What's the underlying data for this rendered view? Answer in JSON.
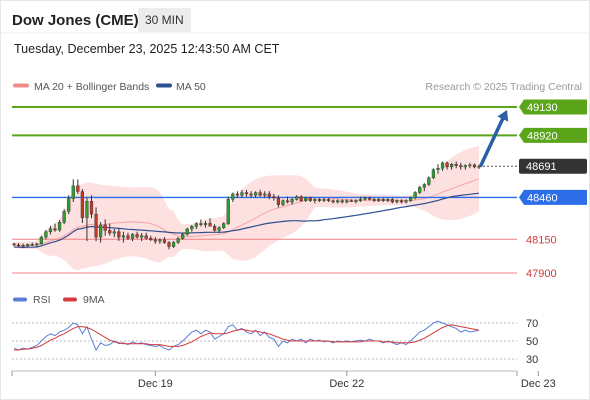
{
  "header": {
    "title": "Dow Jones (CME)",
    "timeframe": "30 MIN",
    "datetime": "Tuesday, December 23, 2025 12:43:50 AM CET"
  },
  "chart_data": [
    {
      "type": "candlestick",
      "legend": [
        {
          "label": "MA 20 + Bollinger Bands",
          "color": "#f08b8b"
        },
        {
          "label": "MA 50",
          "color": "#2f4f8f"
        }
      ],
      "credit": "Research © 2025 Trading Central",
      "ylim": [
        47700,
        49300
      ],
      "x_ticks": [
        {
          "label": "Dec 19",
          "index": 31
        },
        {
          "label": "Dec 22",
          "index": 73
        },
        {
          "label": "Dec 23",
          "index": 115
        }
      ],
      "candles": [
        [
          48116,
          48124,
          48098,
          48108
        ],
        [
          48108,
          48122,
          48092,
          48104
        ],
        [
          48104,
          48118,
          48090,
          48100
        ],
        [
          48100,
          48118,
          48092,
          48112
        ],
        [
          48112,
          48126,
          48100,
          48108
        ],
        [
          48108,
          48124,
          48096,
          48116
        ],
        [
          48116,
          48176,
          48110,
          48166
        ],
        [
          48166,
          48218,
          48150,
          48206
        ],
        [
          48206,
          48248,
          48186,
          48228
        ],
        [
          48228,
          48266,
          48206,
          48218
        ],
        [
          48218,
          48292,
          48206,
          48276
        ],
        [
          48276,
          48374,
          48262,
          48356
        ],
        [
          48356,
          48476,
          48336,
          48452
        ],
        [
          48452,
          48594,
          48426,
          48546
        ],
        [
          48546,
          48594,
          48486,
          48504
        ],
        [
          48504,
          48522,
          48270,
          48310
        ],
        [
          48310,
          48460,
          48136,
          48432
        ],
        [
          48432,
          48476,
          48306,
          48336
        ],
        [
          48336,
          48386,
          48136,
          48166
        ],
        [
          48166,
          48278,
          48126,
          48256
        ],
        [
          48256,
          48298,
          48176,
          48216
        ],
        [
          48216,
          48266,
          48178,
          48196
        ],
        [
          48196,
          48226,
          48166,
          48206
        ],
        [
          48206,
          48226,
          48138,
          48166
        ],
        [
          48166,
          48206,
          48126,
          48176
        ],
        [
          48176,
          48198,
          48146,
          48156
        ],
        [
          48156,
          48196,
          48136,
          48186
        ],
        [
          48186,
          48206,
          48156,
          48166
        ],
        [
          48166,
          48196,
          48136,
          48176
        ],
        [
          48176,
          48198,
          48146,
          48158
        ],
        [
          48158,
          48176,
          48136,
          48146
        ],
        [
          48146,
          48166,
          48116,
          48136
        ],
        [
          48136,
          48156,
          48116,
          48146
        ],
        [
          48146,
          48166,
          48116,
          48126
        ],
        [
          48126,
          48136,
          48076,
          48096
        ],
        [
          48096,
          48136,
          48086,
          48126
        ],
        [
          48126,
          48166,
          48116,
          48156
        ],
        [
          48156,
          48196,
          48146,
          48186
        ],
        [
          48186,
          48236,
          48176,
          48226
        ],
        [
          48226,
          48256,
          48206,
          48246
        ],
        [
          48246,
          48276,
          48226,
          48266
        ],
        [
          48266,
          48296,
          48246,
          48258
        ],
        [
          48258,
          48286,
          48236,
          48268
        ],
        [
          48268,
          48306,
          48256,
          48246
        ],
        [
          48246,
          48262,
          48206,
          48216
        ],
        [
          48216,
          48246,
          48196,
          48236
        ],
        [
          48236,
          48276,
          48226,
          48266
        ],
        [
          48266,
          48466,
          48256,
          48446
        ],
        [
          48446,
          48496,
          48426,
          48486
        ],
        [
          48486,
          48506,
          48456,
          48476
        ],
        [
          48476,
          48516,
          48456,
          48496
        ],
        [
          48496,
          48516,
          48466,
          48486
        ],
        [
          48486,
          48506,
          48456,
          48476
        ],
        [
          48476,
          48506,
          48456,
          48496
        ],
        [
          48496,
          48516,
          48466,
          48476
        ],
        [
          48476,
          48506,
          48456,
          48486
        ],
        [
          48486,
          48506,
          48446,
          48466
        ],
        [
          48466,
          48486,
          48436,
          48456
        ],
        [
          48456,
          48476,
          48386,
          48406
        ],
        [
          48406,
          48446,
          48396,
          48436
        ],
        [
          48436,
          48466,
          48416,
          48426
        ],
        [
          48426,
          48456,
          48406,
          48446
        ],
        [
          48446,
          48476,
          48436,
          48466
        ],
        [
          48466,
          48476,
          48426,
          48436
        ],
        [
          48436,
          48466,
          48426,
          48456
        ],
        [
          48456,
          48466,
          48426,
          48436
        ],
        [
          48436,
          48456,
          48416,
          48446
        ],
        [
          48446,
          48456,
          48426,
          48436
        ],
        [
          48436,
          48456,
          48426,
          48446
        ],
        [
          48446,
          48456,
          48426,
          48436
        ],
        [
          48436,
          48446,
          48416,
          48426
        ],
        [
          48426,
          48446,
          48416,
          48436
        ],
        [
          48436,
          48446,
          48416,
          48426
        ],
        [
          48426,
          48446,
          48416,
          48436
        ],
        [
          48436,
          48446,
          48426,
          48428
        ],
        [
          48428,
          48446,
          48416,
          48436
        ],
        [
          48436,
          48466,
          48426,
          48446
        ],
        [
          48446,
          48466,
          48436,
          48456
        ],
        [
          48456,
          48466,
          48436,
          48446
        ],
        [
          48446,
          48456,
          48426,
          48436
        ],
        [
          48436,
          48456,
          48426,
          48446
        ],
        [
          48446,
          48456,
          48426,
          48436
        ],
        [
          48436,
          48456,
          48426,
          48446
        ],
        [
          48446,
          48456,
          48416,
          48426
        ],
        [
          48426,
          48446,
          48416,
          48436
        ],
        [
          48436,
          48446,
          48416,
          48426
        ],
        [
          48426,
          48446,
          48416,
          48436
        ],
        [
          48436,
          48466,
          48426,
          48456
        ],
        [
          48456,
          48506,
          48446,
          48496
        ],
        [
          48496,
          48546,
          48486,
          48536
        ],
        [
          48536,
          48566,
          48506,
          48556
        ],
        [
          48556,
          48616,
          48546,
          48606
        ],
        [
          48606,
          48676,
          48596,
          48666
        ],
        [
          48666,
          48706,
          48636,
          48676
        ],
        [
          48676,
          48726,
          48656,
          48716
        ],
        [
          48716,
          48726,
          48666,
          48686
        ],
        [
          48686,
          48716,
          48666,
          48706
        ],
        [
          48706,
          48726,
          48676,
          48696
        ],
        [
          48696,
          48716,
          48666,
          48686
        ],
        [
          48686,
          48706,
          48666,
          48696
        ],
        [
          48696,
          48716,
          48676,
          48701
        ],
        [
          48701,
          48712,
          48676,
          48686
        ],
        [
          48686,
          48701,
          48671,
          48691
        ]
      ],
      "levels": [
        {
          "value": 49130,
          "label": "49130",
          "style": "resistance"
        },
        {
          "value": 48920,
          "label": "48920",
          "style": "resistance"
        },
        {
          "value": 48691,
          "label": "48691",
          "style": "last"
        },
        {
          "value": 48460,
          "label": "48460",
          "style": "pivot"
        },
        {
          "value": 48150,
          "label": "48150",
          "style": "support"
        },
        {
          "value": 47900,
          "label": "47900",
          "style": "support"
        }
      ],
      "colors": {
        "resistance": "#5aa51a",
        "pivot": "#2d6ee8",
        "last": "#333333",
        "support": "#e05050",
        "up": "#2f9e2f",
        "down": "#c0392b",
        "ma50": "#2f4f8f",
        "band": "#fde0e0"
      },
      "forecast_arrow_target": 49130
    },
    {
      "type": "line",
      "legend": [
        {
          "label": "RSI",
          "color": "#5b7fd6"
        },
        {
          "label": "9MA",
          "color": "#d63a3a"
        }
      ],
      "ylim": [
        20,
        85
      ],
      "y_ticks": [
        70,
        50,
        30
      ],
      "series": [
        {
          "name": "RSI",
          "values": [
            42,
            40,
            42,
            41,
            43,
            45,
            50,
            55,
            58,
            56,
            60,
            62,
            65,
            70,
            68,
            58,
            66,
            52,
            40,
            48,
            45,
            46,
            50,
            47,
            48,
            46,
            49,
            47,
            48,
            46,
            45,
            44,
            45,
            42,
            40,
            44,
            46,
            50,
            55,
            60,
            62,
            58,
            62,
            60,
            52,
            55,
            58,
            66,
            68,
            62,
            64,
            60,
            58,
            62,
            56,
            60,
            54,
            52,
            44,
            50,
            48,
            52,
            50,
            52,
            48,
            52,
            50,
            51,
            49,
            50,
            48,
            50,
            49,
            50,
            49,
            50,
            51,
            50,
            52,
            50,
            50,
            48,
            50,
            48,
            46,
            48,
            46,
            50,
            55,
            60,
            62,
            66,
            70,
            72,
            70,
            68,
            66,
            64,
            60,
            62,
            60,
            61,
            62
          ]
        },
        {
          "name": "9MA",
          "values": [
            40,
            40,
            41,
            41,
            42,
            43,
            45,
            48,
            51,
            53,
            56,
            58,
            61,
            64,
            66,
            66,
            65,
            63,
            60,
            57,
            54,
            51,
            49,
            48,
            47,
            47,
            47,
            47,
            47,
            47,
            46,
            46,
            46,
            45,
            44,
            44,
            44,
            45,
            47,
            49,
            52,
            55,
            57,
            59,
            58,
            58,
            58,
            59,
            61,
            62,
            63,
            62,
            61,
            61,
            60,
            59,
            58,
            56,
            54,
            52,
            51,
            50,
            50,
            50,
            50,
            50,
            50,
            50,
            50,
            50,
            49,
            49,
            49,
            49,
            49,
            49,
            49,
            50,
            50,
            50,
            50,
            49,
            49,
            49,
            48,
            48,
            48,
            48,
            49,
            51,
            53,
            56,
            59,
            62,
            65,
            67,
            68,
            67,
            66,
            65,
            64,
            63,
            62
          ]
        }
      ]
    }
  ]
}
